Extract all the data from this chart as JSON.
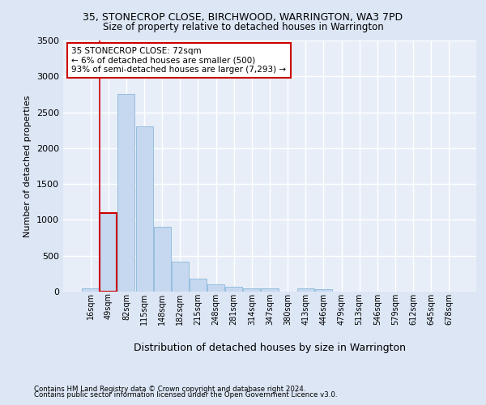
{
  "title_line1": "35, STONECROP CLOSE, BIRCHWOOD, WARRINGTON, WA3 7PD",
  "title_line2": "Size of property relative to detached houses in Warrington",
  "xlabel": "Distribution of detached houses by size in Warrington",
  "ylabel": "Number of detached properties",
  "bar_labels": [
    "16sqm",
    "49sqm",
    "82sqm",
    "115sqm",
    "148sqm",
    "182sqm",
    "215sqm",
    "248sqm",
    "281sqm",
    "314sqm",
    "347sqm",
    "380sqm",
    "413sqm",
    "446sqm",
    "479sqm",
    "513sqm",
    "546sqm",
    "579sqm",
    "612sqm",
    "645sqm",
    "678sqm"
  ],
  "bar_values": [
    50,
    1100,
    2750,
    2300,
    900,
    420,
    180,
    100,
    70,
    50,
    50,
    0,
    50,
    30,
    0,
    0,
    0,
    0,
    0,
    0,
    0
  ],
  "bar_color": "#c5d8ef",
  "bar_edge_color": "#7bafd4",
  "highlight_bar_index": 1,
  "highlight_color": "#cc0000",
  "annotation_line1": "35 STONECROP CLOSE: 72sqm",
  "annotation_line2": "← 6% of detached houses are smaller (500)",
  "annotation_line3": "93% of semi-detached houses are larger (7,293) →",
  "annotation_box_color": "#ffffff",
  "annotation_box_edge_color": "#cc0000",
  "ylim": [
    0,
    3500
  ],
  "yticks": [
    0,
    500,
    1000,
    1500,
    2000,
    2500,
    3000,
    3500
  ],
  "bg_color": "#dce6f5",
  "plot_bg_color": "#e8eef8",
  "grid_color": "#ffffff",
  "footnote1": "Contains HM Land Registry data © Crown copyright and database right 2024.",
  "footnote2": "Contains public sector information licensed under the Open Government Licence v3.0."
}
